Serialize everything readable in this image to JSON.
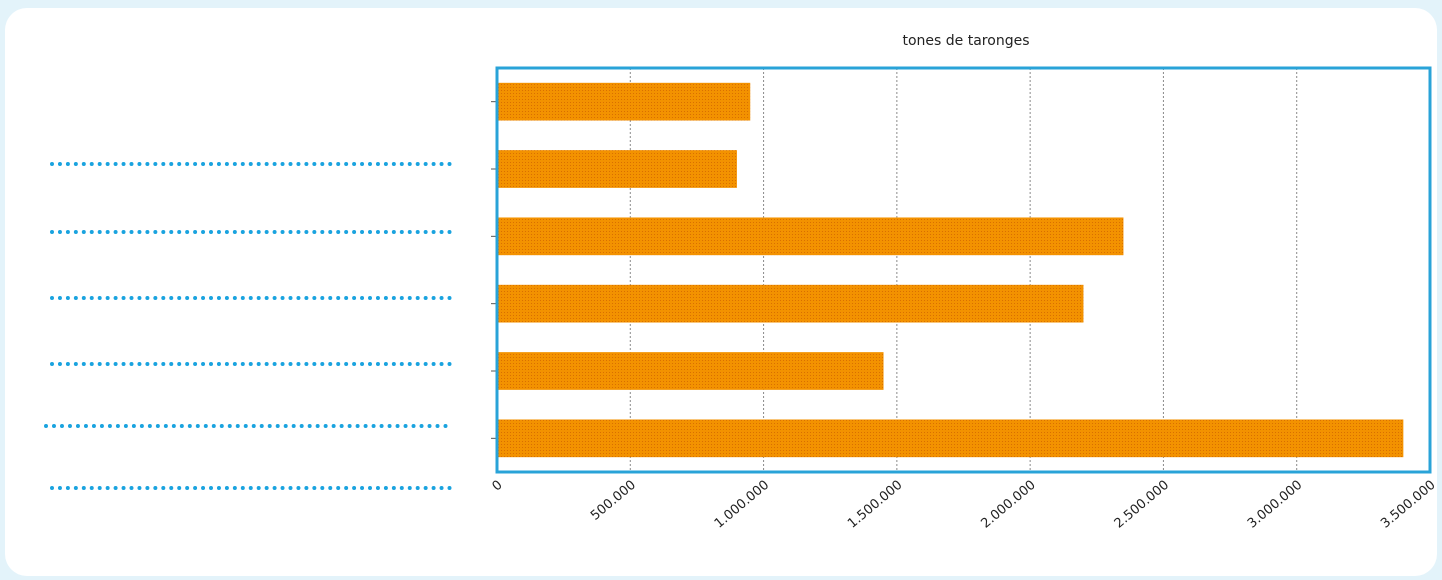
{
  "chart_data": {
    "type": "bar",
    "orientation": "horizontal",
    "title": "tones de taronges",
    "categories": [
      "",
      "",
      "",
      "",
      "",
      ""
    ],
    "values": [
      950000,
      900000,
      2350000,
      2200000,
      1450000,
      3400000
    ],
    "xlim": [
      0,
      3500000
    ],
    "xticks": [
      0,
      500000,
      1000000,
      1500000,
      2000000,
      2500000,
      3000000,
      3500000
    ],
    "xtick_labels": [
      "0",
      "500.000",
      "1.000.000",
      "1.500.000",
      "2.000.000",
      "2.500.000",
      "3.000.000",
      "3.500.000"
    ],
    "grid": "vertical",
    "bar_color": "#f28c00",
    "frame_color": "#29a3d8"
  },
  "worksheet": {
    "answer_lines": 7,
    "line_color": "#1aa3df"
  }
}
